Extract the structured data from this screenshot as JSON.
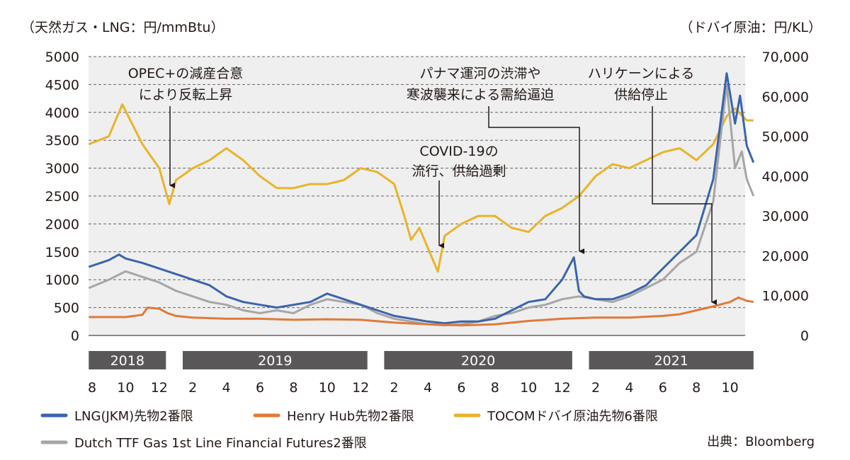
{
  "chart_data": {
    "type": "line",
    "left_axis_label": "（天然ガス・LNG：円/mmBtu）",
    "right_axis_label": "（ドバイ原油：円/KL）",
    "ylim_left": [
      0,
      5000
    ],
    "yticks_left": [
      "0",
      "500",
      "1000",
      "1500",
      "2000",
      "2500",
      "3000",
      "3500",
      "4000",
      "4500",
      "5000"
    ],
    "ylim_right": [
      0,
      70000
    ],
    "yticks_right": [
      "0",
      "10,000",
      "20,000",
      "30,000",
      "40,000",
      "50,000",
      "60,000",
      "70,000"
    ],
    "x_note": "month index from Aug 2018",
    "years": [
      {
        "label": "2018",
        "from": -0.2,
        "to": 4.4
      },
      {
        "label": "2019",
        "from": 5.4,
        "to": 16.4
      },
      {
        "label": "2020",
        "from": 17.4,
        "to": 28.6
      },
      {
        "label": "2021",
        "from": 29.6,
        "to": 39.4
      }
    ],
    "month_ticks": [
      {
        "m": 0,
        "label": "8"
      },
      {
        "m": 2,
        "label": "10"
      },
      {
        "m": 4,
        "label": "12"
      },
      {
        "m": 6,
        "label": "2"
      },
      {
        "m": 8,
        "label": "4"
      },
      {
        "m": 10,
        "label": "6"
      },
      {
        "m": 12,
        "label": "8"
      },
      {
        "m": 14,
        "label": "10"
      },
      {
        "m": 16,
        "label": "12"
      },
      {
        "m": 18,
        "label": "2"
      },
      {
        "m": 20,
        "label": "4"
      },
      {
        "m": 22,
        "label": "6"
      },
      {
        "m": 24,
        "label": "8"
      },
      {
        "m": 26,
        "label": "10"
      },
      {
        "m": 28,
        "label": "12"
      },
      {
        "m": 30,
        "label": "2"
      },
      {
        "m": 32,
        "label": "4"
      },
      {
        "m": 34,
        "label": "6"
      },
      {
        "m": 36,
        "label": "8"
      },
      {
        "m": 38,
        "label": "10"
      }
    ],
    "series": [
      {
        "name": "LNG(JKM)先物2番限",
        "color": "#3a64ad",
        "axis": "left",
        "x": [
          -0.2,
          1,
          1.6,
          2,
          3,
          4,
          5,
          6,
          7,
          8,
          9,
          10,
          11,
          12,
          13,
          14,
          15,
          16,
          17,
          18,
          19,
          20,
          21,
          22,
          23,
          24,
          25,
          26,
          27,
          28,
          28.7,
          29,
          29.3,
          30,
          31,
          32,
          33,
          34,
          35,
          36,
          37,
          37.8,
          38.3,
          38.6,
          39,
          39.4
        ],
        "y": [
          1230,
          1350,
          1450,
          1380,
          1300,
          1200,
          1100,
          1000,
          900,
          700,
          600,
          550,
          500,
          550,
          600,
          750,
          650,
          550,
          450,
          350,
          300,
          250,
          220,
          250,
          250,
          300,
          450,
          600,
          650,
          1000,
          1400,
          800,
          700,
          650,
          650,
          750,
          900,
          1200,
          1500,
          1800,
          2800,
          4700,
          3800,
          4300,
          3400,
          3100
        ]
      },
      {
        "name": "Henry Hub先物2番限",
        "color": "#e07a3a",
        "axis": "left",
        "x": [
          -0.2,
          2,
          3,
          3.3,
          4,
          4.5,
          5,
          6,
          8,
          10,
          12,
          14,
          16,
          18,
          20,
          22,
          24,
          26,
          28,
          30,
          32,
          34,
          35,
          36,
          37,
          38,
          38.5,
          39,
          39.4
        ],
        "y": [
          330,
          330,
          370,
          500,
          480,
          400,
          350,
          320,
          300,
          300,
          280,
          290,
          280,
          230,
          200,
          180,
          200,
          260,
          300,
          320,
          320,
          350,
          380,
          450,
          520,
          600,
          680,
          620,
          600
        ]
      },
      {
        "name": "TOCOMドバイ原油先物6番限",
        "color": "#e8b429",
        "axis": "right",
        "x": [
          -0.2,
          1,
          1.8,
          2.4,
          3,
          4,
          4.6,
          5,
          6,
          7,
          8,
          9,
          10,
          11,
          12,
          13,
          14,
          15,
          16,
          17,
          18,
          18.6,
          19,
          19.5,
          20,
          20.6,
          21,
          22,
          23,
          24,
          25,
          26,
          27,
          28,
          29,
          30,
          31,
          32,
          33,
          34,
          35,
          36,
          37,
          37.8,
          38.3,
          39,
          39.4
        ],
        "y": [
          48000,
          50000,
          58000,
          53000,
          48000,
          42000,
          33000,
          39000,
          42000,
          44000,
          47000,
          44000,
          40000,
          37000,
          37000,
          38000,
          38000,
          39000,
          42000,
          41000,
          38000,
          30000,
          24000,
          27000,
          22000,
          16000,
          25000,
          28000,
          30000,
          30000,
          27000,
          26000,
          30000,
          32000,
          35000,
          40000,
          43000,
          42000,
          44000,
          46000,
          47000,
          44000,
          48000,
          55000,
          57000,
          54000,
          54000
        ]
      },
      {
        "name": "Dutch TTF Gas 1st Line Financial Futures2番限",
        "color": "#a6a6a6",
        "axis": "left",
        "x": [
          -0.2,
          1,
          2,
          3,
          4,
          5,
          6,
          7,
          8,
          9,
          10,
          11,
          12,
          13,
          14,
          15,
          16,
          17,
          18,
          19,
          20,
          21,
          22,
          23,
          24,
          25,
          26,
          27,
          28,
          29,
          30,
          31,
          32,
          33,
          34,
          35,
          36,
          37,
          37.8,
          38.3,
          38.7,
          39,
          39.4
        ],
        "y": [
          850,
          1000,
          1150,
          1050,
          950,
          800,
          700,
          600,
          550,
          450,
          400,
          450,
          400,
          550,
          650,
          600,
          550,
          400,
          300,
          250,
          200,
          180,
          200,
          250,
          350,
          400,
          500,
          550,
          650,
          700,
          650,
          600,
          700,
          850,
          1000,
          1300,
          1500,
          2400,
          4500,
          3000,
          3300,
          2800,
          2500
        ]
      }
    ],
    "annotations": [
      {
        "lines": [
          "OPEC+の減産合意",
          "により反転上昇"
        ]
      },
      {
        "lines": [
          "COVID-19の",
          "流行、供給過剰"
        ]
      },
      {
        "lines": [
          "パナマ運河の渋滞や",
          "寒波襲来による需給逼迫"
        ]
      },
      {
        "lines": [
          "ハリケーンによる",
          "供給停止"
        ]
      }
    ],
    "source": "出典：Bloomberg"
  }
}
